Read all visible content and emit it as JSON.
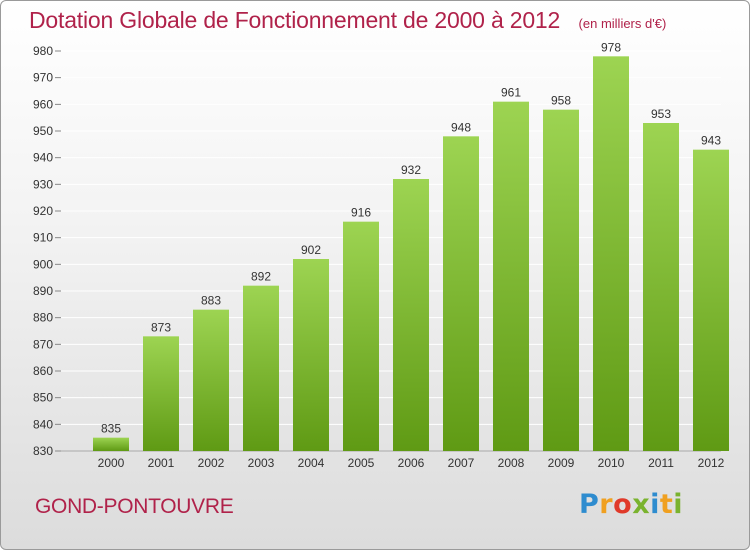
{
  "header": {
    "title": "Dotation Globale de Fonctionnement de 2000 à 2012",
    "unit": "(en milliers d'€)"
  },
  "footer": {
    "commune": "GOND-PONTOUVRE",
    "logo_letters": [
      "P",
      "r",
      "o",
      "x",
      "i",
      "t",
      "i"
    ],
    "logo_colors": [
      "#2e8ccf",
      "#f0a020",
      "#e03a2a",
      "#7ab32e",
      "#2e8ccf",
      "#f0a020",
      "#7ab32e"
    ]
  },
  "colors": {
    "title": "#b0224a",
    "bar_light": "#9dd452",
    "bar_dark": "#5f9a14",
    "grid": "#ffffff",
    "axis_text": "#333333"
  },
  "chart_data": {
    "type": "bar",
    "categories": [
      "2000",
      "2001",
      "2002",
      "2003",
      "2004",
      "2005",
      "2006",
      "2007",
      "2008",
      "2009",
      "2010",
      "2011",
      "2012"
    ],
    "values": [
      835,
      873,
      883,
      892,
      902,
      916,
      932,
      948,
      961,
      958,
      978,
      953,
      943
    ],
    "ylim": [
      830,
      980
    ],
    "yticks": [
      830,
      840,
      850,
      860,
      870,
      880,
      890,
      900,
      910,
      920,
      930,
      940,
      950,
      960,
      970,
      980
    ],
    "grid": true,
    "data_labels": true
  }
}
